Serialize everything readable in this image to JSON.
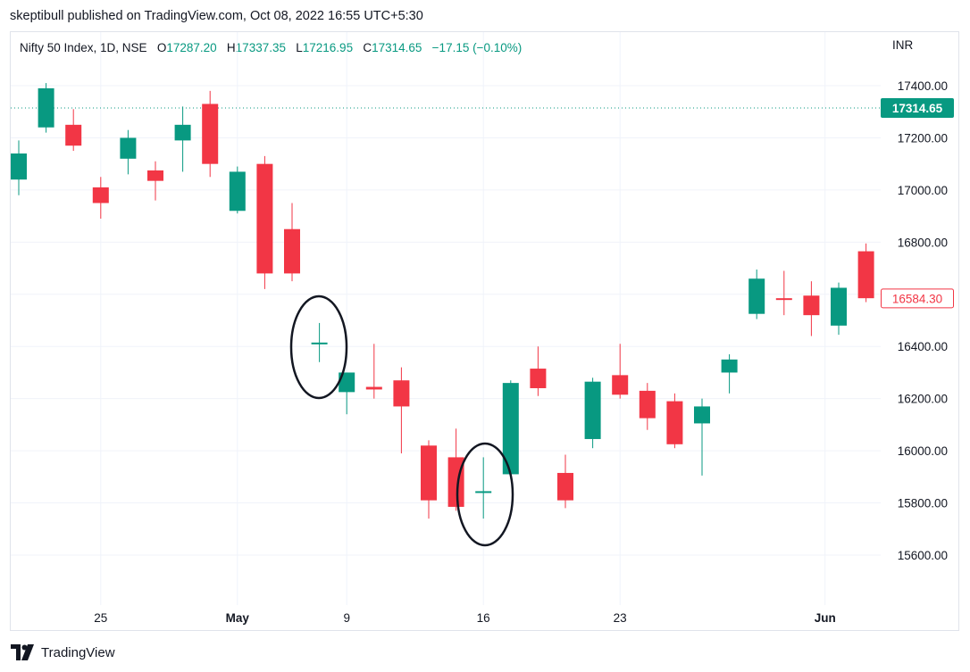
{
  "publisher_line": "skeptibull published on TradingView.com, Oct 08, 2022 16:55 UTC+5:30",
  "legend": {
    "symbol": "Nifty 50 Index, 1D, NSE",
    "o_label": "O",
    "o_value": "17287.20",
    "h_label": "H",
    "h_value": "17337.35",
    "l_label": "L",
    "l_value": "17216.95",
    "c_label": "C",
    "c_value": "17314.65",
    "change": "−17.15 (−0.10%)"
  },
  "currency": "INR",
  "brand": "TradingView",
  "colors": {
    "up": "#089981",
    "down": "#f23645",
    "last_price": "#089981",
    "marker": "#f23645",
    "grid": "#f0f3fa"
  },
  "chart_data": {
    "type": "candlestick",
    "y_axis": {
      "ylim": [
        15400,
        17500
      ],
      "ticks": [
        "15600.00",
        "15800.00",
        "16000.00",
        "16200.00",
        "16400.00",
        "16600.00",
        "16800.00",
        "17000.00",
        "17200.00",
        "17400.00"
      ]
    },
    "x_tick_labels": [
      "25",
      "May",
      "9",
      "16",
      "23",
      "Jun"
    ],
    "last_price_label": "17314.65",
    "last_price": 17314.65,
    "marker_price_label": "16584.30",
    "marker_price": 16584.3,
    "annotations": [
      "ellipse around doji candle (May 6)",
      "ellipse around doji candle (May 16)"
    ],
    "candles": [
      {
        "o": 17040,
        "h": 17190,
        "l": 16980,
        "c": 17140
      },
      {
        "o": 17240,
        "h": 17410,
        "l": 17220,
        "c": 17390
      },
      {
        "o": 17250,
        "h": 17310,
        "l": 17150,
        "c": 17170
      },
      {
        "o": 17010,
        "h": 17050,
        "l": 16890,
        "c": 16950
      },
      {
        "o": 17120,
        "h": 17230,
        "l": 17060,
        "c": 17200
      },
      {
        "o": 17075,
        "h": 17110,
        "l": 16960,
        "c": 17035
      },
      {
        "o": 17190,
        "h": 17320,
        "l": 17070,
        "c": 17250
      },
      {
        "o": 17330,
        "h": 17380,
        "l": 17050,
        "c": 17100
      },
      {
        "o": 16920,
        "h": 17090,
        "l": 16910,
        "c": 17070
      },
      {
        "o": 17100,
        "h": 17130,
        "l": 16620,
        "c": 16680
      },
      {
        "o": 16850,
        "h": 16950,
        "l": 16650,
        "c": 16680
      },
      {
        "o": 16410,
        "h": 16490,
        "l": 16340,
        "c": 16415
      },
      {
        "o": 16225,
        "h": 16300,
        "l": 16140,
        "c": 16300
      },
      {
        "o": 16245,
        "h": 16410,
        "l": 16200,
        "c": 16235
      },
      {
        "o": 16270,
        "h": 16320,
        "l": 15990,
        "c": 16170
      },
      {
        "o": 16020,
        "h": 16040,
        "l": 15740,
        "c": 15810
      },
      {
        "o": 15975,
        "h": 16085,
        "l": 15770,
        "c": 15785
      },
      {
        "o": 15845,
        "h": 15975,
        "l": 15740,
        "c": 15845
      },
      {
        "o": 15910,
        "h": 16270,
        "l": 15890,
        "c": 16260
      },
      {
        "o": 16315,
        "h": 16400,
        "l": 16210,
        "c": 16240
      },
      {
        "o": 15915,
        "h": 15985,
        "l": 15780,
        "c": 15810
      },
      {
        "o": 16045,
        "h": 16280,
        "l": 16010,
        "c": 16265
      },
      {
        "o": 16290,
        "h": 16410,
        "l": 16200,
        "c": 16215
      },
      {
        "o": 16230,
        "h": 16260,
        "l": 16080,
        "c": 16125
      },
      {
        "o": 16190,
        "h": 16220,
        "l": 16010,
        "c": 16025
      },
      {
        "o": 16105,
        "h": 16200,
        "l": 15905,
        "c": 16170
      },
      {
        "o": 16300,
        "h": 16370,
        "l": 16220,
        "c": 16350
      },
      {
        "o": 16525,
        "h": 16695,
        "l": 16505,
        "c": 16660
      },
      {
        "o": 16585,
        "h": 16690,
        "l": 16520,
        "c": 16580
      },
      {
        "o": 16595,
        "h": 16650,
        "l": 16440,
        "c": 16520
      },
      {
        "o": 16480,
        "h": 16645,
        "l": 16445,
        "c": 16625
      },
      {
        "o": 16765,
        "h": 16795,
        "l": 16570,
        "c": 16585
      }
    ]
  }
}
